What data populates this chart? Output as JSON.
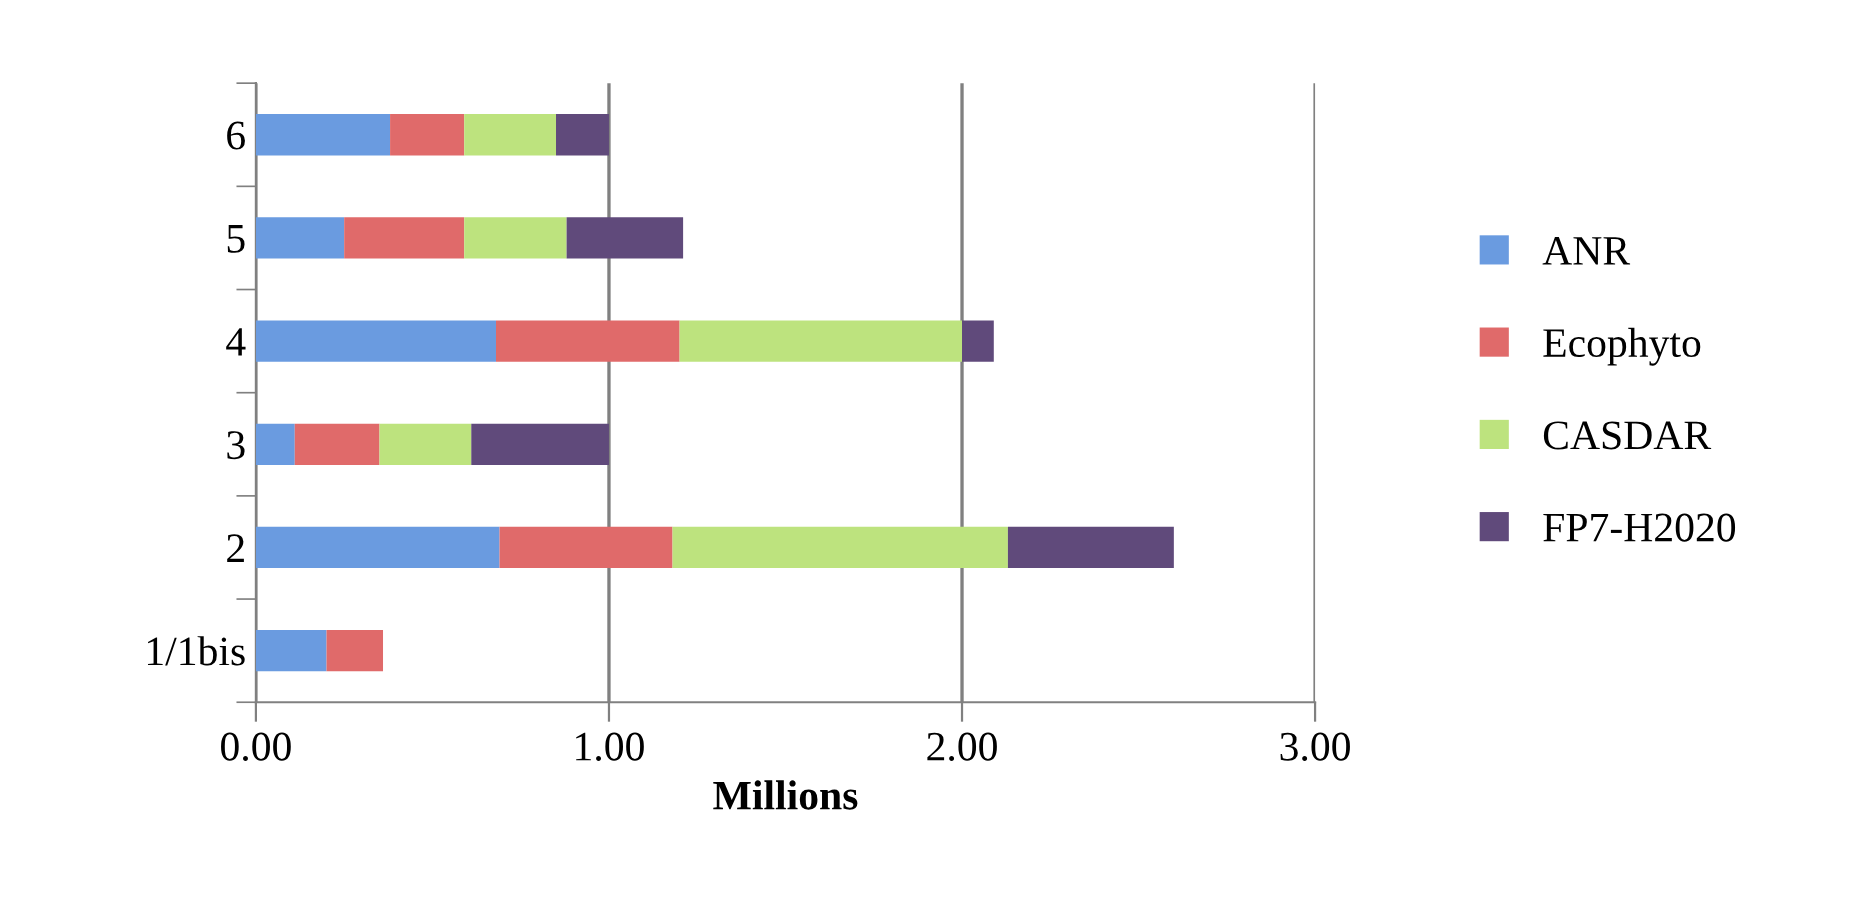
{
  "chart_data": {
    "type": "bar",
    "orientation": "horizontal",
    "stacked": true,
    "xlabel": "Millions",
    "categories": [
      "6",
      "5",
      "4",
      "3",
      "2",
      "1/1bis"
    ],
    "series": [
      {
        "name": "ANR",
        "color": "#6a9be0",
        "values": [
          0.38,
          0.25,
          0.68,
          0.11,
          0.69,
          0.2
        ]
      },
      {
        "name": "Ecophyto",
        "color": "#e06a6a",
        "values": [
          0.21,
          0.34,
          0.52,
          0.24,
          0.49,
          0.16
        ]
      },
      {
        "name": "CASDAR",
        "color": "#bde37e",
        "values": [
          0.26,
          0.29,
          0.8,
          0.26,
          0.95,
          null
        ]
      },
      {
        "name": "FP7-H2020",
        "color": "#604a7b",
        "values": [
          0.15,
          0.33,
          0.09,
          0.39,
          0.47,
          null
        ]
      }
    ],
    "xlim": [
      0,
      3
    ],
    "xticks": [
      {
        "value": 0,
        "label": "0.00"
      },
      {
        "value": 1,
        "label": "1.00"
      },
      {
        "value": 2,
        "label": "2.00"
      },
      {
        "value": 3,
        "label": "3.00"
      }
    ],
    "grid": "x",
    "legend": "right"
  }
}
